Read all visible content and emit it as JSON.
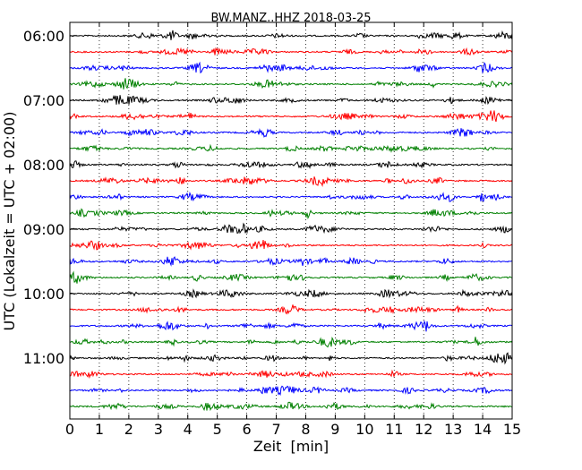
{
  "chart_data": {
    "type": "line",
    "chart_kind": "helicorder (seismogram drum plot)",
    "title": "BW.MANZ..HHZ 2018-03-25",
    "xlabel": "Zeit  [min]",
    "ylabel": "UTC (Lokalzeit = UTC + 02:00)",
    "xlim": [
      0,
      15
    ],
    "x_ticks": [
      "0",
      "1",
      "2",
      "3",
      "4",
      "5",
      "6",
      "7",
      "8",
      "9",
      "10",
      "11",
      "12",
      "13",
      "14",
      "15"
    ],
    "grid": "vertical dotted lines at each minute",
    "minutes_per_line": 15,
    "first_line_utc": "06:00",
    "line_count": 24,
    "y_ticks": [
      {
        "label": "06:00",
        "line_index": 0
      },
      {
        "label": "07:00",
        "line_index": 4
      },
      {
        "label": "08:00",
        "line_index": 8
      },
      {
        "label": "09:00",
        "line_index": 12
      },
      {
        "label": "10:00",
        "line_index": 16
      },
      {
        "label": "11:00",
        "line_index": 20
      }
    ],
    "trace_colors": [
      "#000000",
      "#ff0000",
      "#0000ff",
      "#008000"
    ],
    "color_cycle": "black, red, blue, green repeating per line"
  }
}
